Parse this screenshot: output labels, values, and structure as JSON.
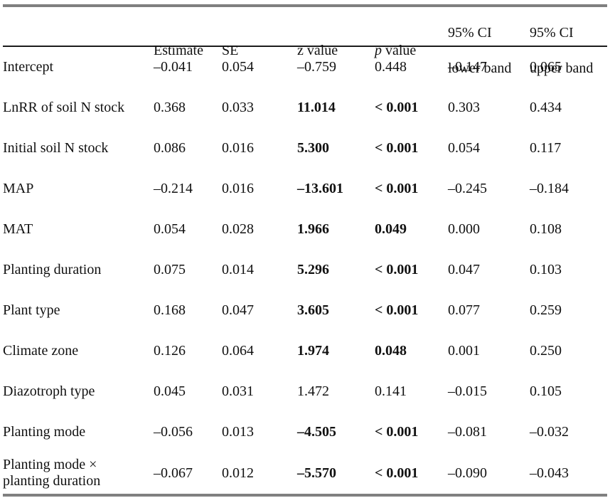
{
  "table": {
    "header": {
      "estimate": "Estimate",
      "se": "SE",
      "z": "z value",
      "p_symbol": "p",
      "p_rest": " value",
      "ci_line1": "95% CI",
      "ci_lower_line2": "lower band",
      "ci_upper_line2": "upper band"
    },
    "colors": {
      "thick_rule": "#808080",
      "thin_rule": "#1b1b1b",
      "text": "#111111",
      "background": "#ffffff"
    },
    "rows": [
      {
        "label": "Intercept",
        "estimate": "–0.041",
        "se": "0.054",
        "z": "–0.759",
        "z_bold": false,
        "p": "0.448",
        "p_bold": false,
        "ci_lower": "–0.147",
        "ci_upper": "0.065"
      },
      {
        "label": "LnRR of soil N stock",
        "estimate": "0.368",
        "se": "0.033",
        "z": "11.014",
        "z_bold": true,
        "p": "< 0.001",
        "p_bold": true,
        "ci_lower": "0.303",
        "ci_upper": "0.434"
      },
      {
        "label": "Initial soil N stock",
        "estimate": "0.086",
        "se": "0.016",
        "z": "5.300",
        "z_bold": true,
        "p": "< 0.001",
        "p_bold": true,
        "ci_lower": "0.054",
        "ci_upper": "0.117"
      },
      {
        "label": "MAP",
        "estimate": "–0.214",
        "se": "0.016",
        "z": "–13.601",
        "z_bold": true,
        "p": "< 0.001",
        "p_bold": true,
        "ci_lower": "–0.245",
        "ci_upper": "–0.184"
      },
      {
        "label": "MAT",
        "estimate": "0.054",
        "se": "0.028",
        "z": "1.966",
        "z_bold": true,
        "p": "0.049",
        "p_bold": true,
        "ci_lower": "0.000",
        "ci_upper": "0.108"
      },
      {
        "label": "Planting duration",
        "estimate": "0.075",
        "se": "0.014",
        "z": "5.296",
        "z_bold": true,
        "p": "< 0.001",
        "p_bold": true,
        "ci_lower": "0.047",
        "ci_upper": "0.103"
      },
      {
        "label": "Plant type",
        "estimate": "0.168",
        "se": "0.047",
        "z": "3.605",
        "z_bold": true,
        "p": "< 0.001",
        "p_bold": true,
        "ci_lower": "0.077",
        "ci_upper": "0.259"
      },
      {
        "label": "Climate zone",
        "estimate": "0.126",
        "se": "0.064",
        "z": "1.974",
        "z_bold": true,
        "p": "0.048",
        "p_bold": true,
        "ci_lower": "0.001",
        "ci_upper": "0.250"
      },
      {
        "label": "Diazotroph type",
        "estimate": "0.045",
        "se": "0.031",
        "z": "1.472",
        "z_bold": false,
        "p": "0.141",
        "p_bold": false,
        "ci_lower": "–0.015",
        "ci_upper": "0.105"
      },
      {
        "label": "Planting mode",
        "estimate": "–0.056",
        "se": "0.013",
        "z": "–4.505",
        "z_bold": true,
        "p": "< 0.001",
        "p_bold": true,
        "ci_lower": "–0.081",
        "ci_upper": "–0.032"
      },
      {
        "label": "Planting mode ×\nplanting duration",
        "estimate": "–0.067",
        "se": "0.012",
        "z": "–5.570",
        "z_bold": true,
        "p": "< 0.001",
        "p_bold": true,
        "ci_lower": "–0.090",
        "ci_upper": "–0.043"
      }
    ]
  }
}
